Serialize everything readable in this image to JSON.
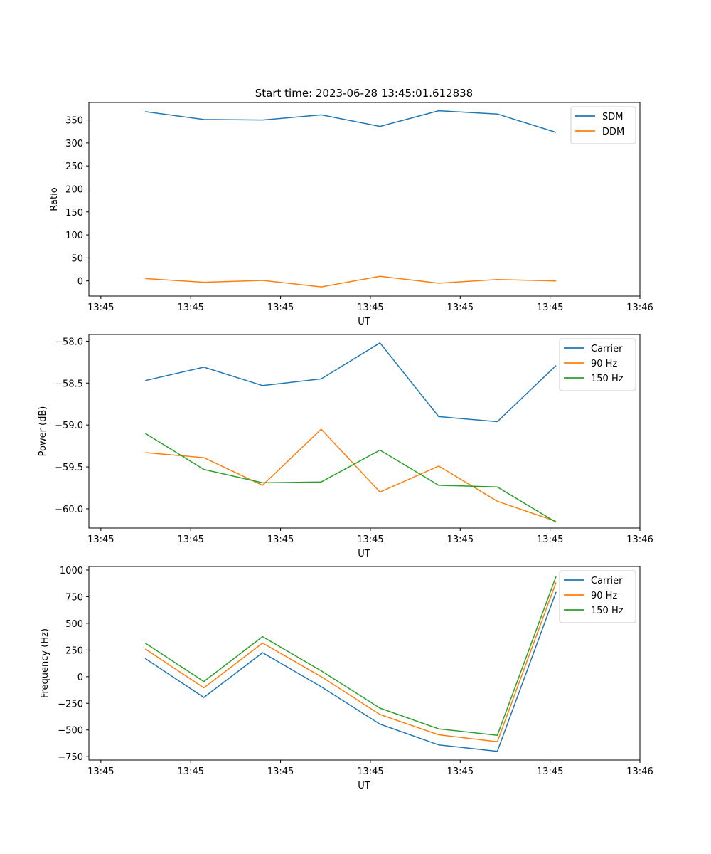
{
  "chart_data": [
    {
      "type": "line",
      "title": "Start time: 2023-06-28 13:45:01.612838",
      "xlabel": "UT",
      "ylabel": "Ratio",
      "xlim": [
        -0.2,
        9.0
      ],
      "ylim": [
        -33,
        388
      ],
      "xticks": [
        0,
        1.5,
        3,
        4.5,
        6,
        7.5,
        9
      ],
      "xtick_labels": [
        "13:45",
        "13:45",
        "13:45",
        "13:45",
        "13:45",
        "13:45",
        "13:46"
      ],
      "yticks": [
        0,
        50,
        100,
        150,
        200,
        250,
        300,
        350
      ],
      "ytick_labels": [
        "0",
        "50",
        "100",
        "150",
        "200",
        "250",
        "300",
        "350"
      ],
      "legend_position": "top-right",
      "x": [
        0.74,
        1.72,
        2.7,
        3.68,
        4.66,
        5.64,
        6.62,
        7.6
      ],
      "series": [
        {
          "name": "SDM",
          "color": "#1f77b4",
          "values": [
            368,
            351,
            350,
            361,
            336,
            370,
            363,
            323
          ]
        },
        {
          "name": "DDM",
          "color": "#ff7f0e",
          "values": [
            5,
            -3,
            1,
            -13,
            10,
            -5,
            3,
            0
          ]
        }
      ]
    },
    {
      "type": "line",
      "title": "",
      "xlabel": "UT",
      "ylabel": "Power (dB)",
      "xlim": [
        -0.2,
        9.0
      ],
      "ylim": [
        -60.23,
        -57.92
      ],
      "xticks": [
        0,
        1.5,
        3,
        4.5,
        6,
        7.5,
        9
      ],
      "xtick_labels": [
        "13:45",
        "13:45",
        "13:45",
        "13:45",
        "13:45",
        "13:45",
        "13:46"
      ],
      "yticks": [
        -60.0,
        -59.5,
        -59.0,
        -58.5,
        -58.0
      ],
      "ytick_labels": [
        "−60.0",
        "−59.5",
        "−59.0",
        "−58.5",
        "−58.0"
      ],
      "legend_position": "top-right",
      "x": [
        0.74,
        1.72,
        2.7,
        3.68,
        4.66,
        5.64,
        6.62,
        7.6
      ],
      "series": [
        {
          "name": "Carrier",
          "color": "#1f77b4",
          "values": [
            -58.47,
            -58.31,
            -58.53,
            -58.45,
            -58.02,
            -58.9,
            -58.96,
            -58.29
          ]
        },
        {
          "name": "90 Hz",
          "color": "#ff7f0e",
          "values": [
            -59.33,
            -59.39,
            -59.72,
            -59.05,
            -59.8,
            -59.49,
            -59.91,
            -60.15
          ]
        },
        {
          "name": "150 Hz",
          "color": "#2ca02c",
          "values": [
            -59.1,
            -59.53,
            -59.69,
            -59.68,
            -59.3,
            -59.72,
            -59.74,
            -60.16
          ]
        }
      ]
    },
    {
      "type": "line",
      "title": "",
      "xlabel": "UT",
      "ylabel": "Frequency (Hz)",
      "xlim": [
        -0.2,
        9.0
      ],
      "ylim": [
        -782,
        1033
      ],
      "xticks": [
        0,
        1.5,
        3,
        4.5,
        6,
        7.5,
        9
      ],
      "xtick_labels": [
        "13:45",
        "13:45",
        "13:45",
        "13:45",
        "13:45",
        "13:45",
        "13:46"
      ],
      "yticks": [
        -750,
        -500,
        -250,
        0,
        250,
        500,
        750,
        1000
      ],
      "ytick_labels": [
        "−750",
        "−500",
        "−250",
        "0",
        "250",
        "500",
        "750",
        "1000"
      ],
      "legend_position": "top-right",
      "x": [
        0.74,
        1.72,
        2.7,
        3.68,
        4.66,
        5.64,
        6.62,
        7.6
      ],
      "series": [
        {
          "name": "Carrier",
          "color": "#1f77b4",
          "values": [
            170,
            -195,
            225,
            -95,
            -445,
            -640,
            -700,
            795
          ]
        },
        {
          "name": "90 Hz",
          "color": "#ff7f0e",
          "values": [
            260,
            -105,
            315,
            0,
            -355,
            -545,
            -610,
            885
          ]
        },
        {
          "name": "150 Hz",
          "color": "#2ca02c",
          "values": [
            315,
            -45,
            375,
            55,
            -295,
            -490,
            -550,
            940
          ]
        }
      ]
    }
  ]
}
